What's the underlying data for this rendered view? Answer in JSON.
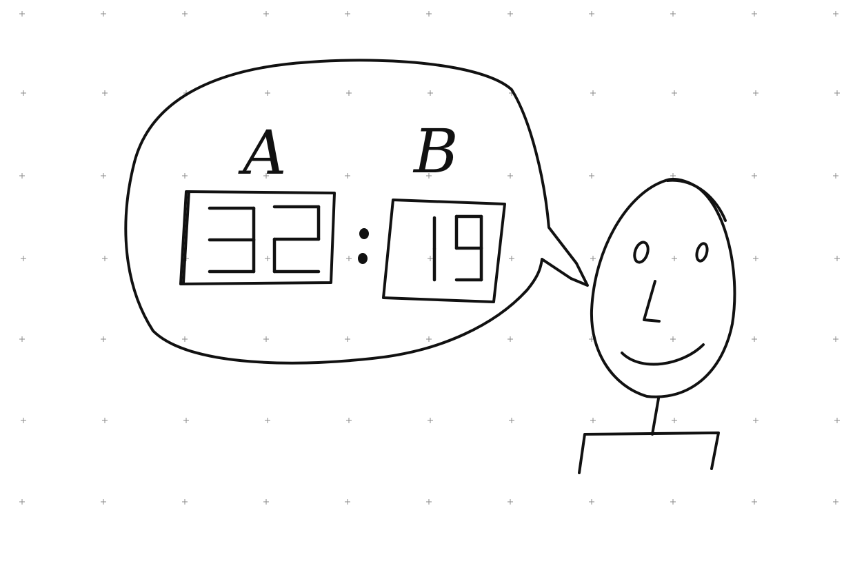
{
  "scoreboard": {
    "team_a": {
      "label": "A",
      "score": "32"
    },
    "separator": ":",
    "team_b": {
      "label": "B",
      "score": "19"
    }
  },
  "colors": {
    "ink": "#111111",
    "paper": "#ffffff",
    "grid": "#8a8a8a"
  },
  "icons": {
    "figure": "stick-figure-icon",
    "bubble": "speech-bubble-icon"
  }
}
